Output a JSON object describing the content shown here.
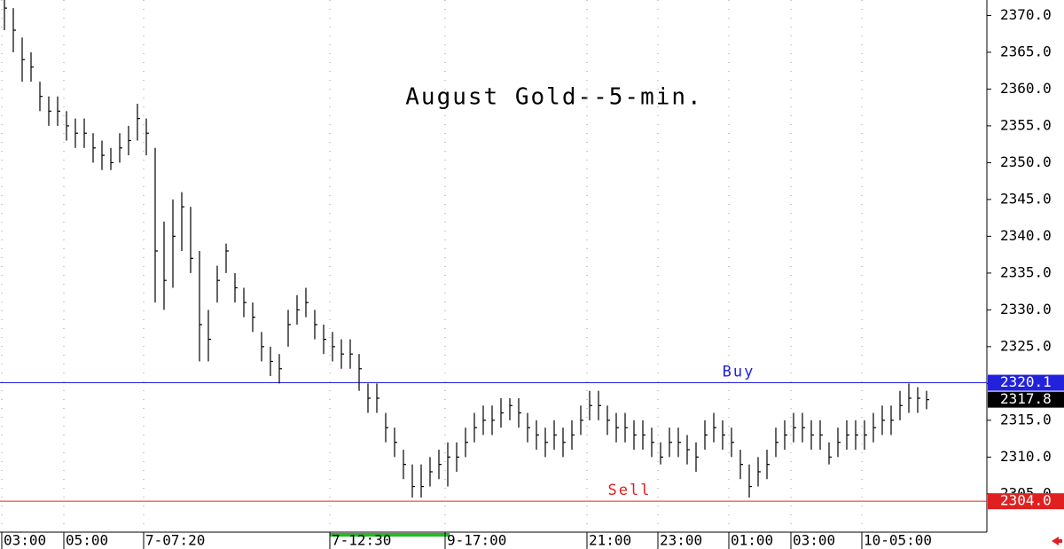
{
  "chart_data": {
    "type": "ohlc",
    "title": "August Gold--5-min.",
    "close": [
      2371,
      2368,
      2364,
      2363,
      2359,
      2357,
      2357,
      2355,
      2354,
      2354,
      2352,
      2351,
      2350,
      2352,
      2353,
      2356,
      2354,
      2338,
      2334,
      2340,
      2344,
      2337,
      2328,
      2326,
      2334,
      2338,
      2333,
      2331,
      2329,
      2325,
      2323,
      2322,
      2328,
      2330,
      2331,
      2328,
      2326,
      2325,
      2324,
      2324,
      2322,
      2318,
      2318,
      2314,
      2312,
      2309,
      2306,
      2306,
      2308,
      2309,
      2310,
      2310,
      2312,
      2314,
      2315,
      2315,
      2316,
      2317,
      2316,
      2314,
      2313,
      2312,
      2313,
      2312,
      2313,
      2315,
      2317,
      2317,
      2315,
      2314,
      2314,
      2313,
      2313,
      2312,
      2310,
      2312,
      2312,
      2311,
      2310,
      2313,
      2314,
      2313,
      2312,
      2309,
      2306,
      2308,
      2309,
      2312,
      2313,
      2314,
      2314,
      2313,
      2313,
      2310,
      2312,
      2313,
      2313,
      2313,
      2314,
      2315,
      2315,
      2317,
      2318,
      2318,
      2317.8
    ],
    "high": [
      2373,
      2371,
      2367,
      2365,
      2361,
      2359,
      2359,
      2357,
      2356,
      2356,
      2354,
      2353,
      2352,
      2354,
      2355,
      2358,
      2356,
      2352,
      2342,
      2345,
      2346,
      2344,
      2338,
      2330,
      2336,
      2339,
      2335,
      2333,
      2331,
      2327,
      2325,
      2324,
      2330,
      2332,
      2333,
      2330,
      2328,
      2327,
      2326,
      2326,
      2324,
      2320,
      2320,
      2316,
      2314,
      2311,
      2309,
      2309,
      2310,
      2311,
      2312,
      2312,
      2314,
      2316,
      2317,
      2317,
      2318,
      2318,
      2318,
      2316,
      2315,
      2314,
      2315,
      2314,
      2315,
      2317,
      2319,
      2319,
      2317,
      2316,
      2316,
      2315,
      2315,
      2314,
      2312,
      2314,
      2314,
      2313,
      2312,
      2315,
      2316,
      2315,
      2314,
      2311,
      2309,
      2310,
      2311,
      2314,
      2315,
      2316,
      2316,
      2315,
      2315,
      2312,
      2314,
      2315,
      2315,
      2315,
      2316,
      2317,
      2317,
      2319,
      2320,
      2319.5,
      2319
    ],
    "low": [
      2368,
      2365,
      2361,
      2361,
      2357,
      2355,
      2355,
      2353,
      2352,
      2352,
      2350,
      2349,
      2349,
      2350,
      2351,
      2353,
      2351,
      2331,
      2330,
      2333,
      2338,
      2335,
      2323,
      2323,
      2331,
      2335,
      2331,
      2329,
      2327,
      2323,
      2321,
      2320,
      2325,
      2328,
      2329,
      2326,
      2324,
      2323,
      2322,
      2322,
      2319,
      2316,
      2316,
      2312,
      2310,
      2307,
      2304.5,
      2304.5,
      2306,
      2307,
      2306,
      2308,
      2310,
      2312,
      2313,
      2313,
      2314,
      2315,
      2314,
      2312,
      2311,
      2310,
      2311,
      2310,
      2311,
      2313,
      2315,
      2315,
      2313,
      2312,
      2312,
      2311,
      2311,
      2310,
      2309,
      2310,
      2310,
      2309,
      2308,
      2311,
      2312,
      2311,
      2310,
      2307,
      2304.5,
      2306,
      2307,
      2310,
      2311,
      2312,
      2312,
      2311,
      2311,
      2309,
      2310,
      2311,
      2311,
      2311,
      2312,
      2313,
      2313,
      2315,
      2316,
      2316,
      2316.5
    ],
    "color": "#000000",
    "ylim": [
      2299.8,
      2372.1
    ],
    "yticks": [
      {
        "value": 2305,
        "label": "2305.0"
      },
      {
        "value": 2310,
        "label": "2310.0"
      },
      {
        "value": 2315,
        "label": "2315.0"
      },
      {
        "value": 2320,
        "label": "2320.0"
      },
      {
        "value": 2325,
        "label": "2325.0"
      },
      {
        "value": 2330,
        "label": "2330.0"
      },
      {
        "value": 2335,
        "label": "2335.0"
      },
      {
        "value": 2340,
        "label": "2340.0"
      },
      {
        "value": 2345,
        "label": "2345.0"
      },
      {
        "value": 2350,
        "label": "2350.0"
      },
      {
        "value": 2355,
        "label": "2355.0"
      },
      {
        "value": 2360,
        "label": "2360.0"
      },
      {
        "value": 2365,
        "label": "2365.0"
      },
      {
        "value": 2370,
        "label": "2370.0"
      }
    ],
    "xticks": [
      {
        "index": 0,
        "label": "03:00"
      },
      {
        "index": 7,
        "label": "05:00"
      },
      {
        "index": 16,
        "label": "7-07:20"
      },
      {
        "index": 37,
        "label": "7-12:30"
      },
      {
        "index": 50,
        "label": "9-17:00"
      },
      {
        "index": 66,
        "label": "21:00"
      },
      {
        "index": 74,
        "label": "23:00"
      },
      {
        "index": 82,
        "label": "01:00"
      },
      {
        "index": 89,
        "label": "03:00"
      },
      {
        "index": 97,
        "label": "10-05:00"
      }
    ],
    "levels": [
      {
        "name": "Buy",
        "value": 2320.1,
        "color": "#2222dd"
      },
      {
        "name": "Sell",
        "value": 2304.0,
        "label": "2304.0",
        "color": "#e02020"
      }
    ],
    "last": 2317.8
  }
}
